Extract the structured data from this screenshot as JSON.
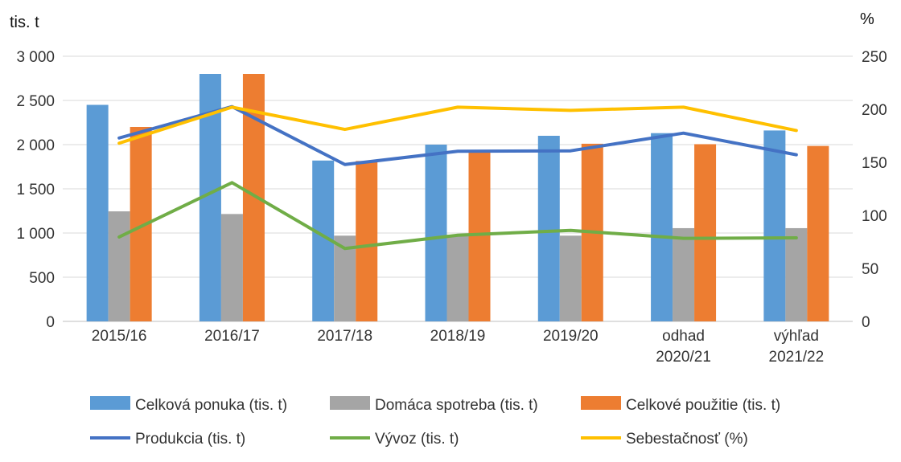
{
  "chart_data": {
    "type": "bar",
    "categories": [
      [
        "2015/16"
      ],
      [
        "2016/17"
      ],
      [
        "2017/18"
      ],
      [
        "2018/19"
      ],
      [
        "2019/20"
      ],
      [
        "odhad",
        "2020/21"
      ],
      [
        "výhľad",
        "2021/22"
      ]
    ],
    "left_axis": {
      "unit": "tis. t",
      "ylim": [
        0,
        3000
      ],
      "ticks": [
        0,
        500,
        1000,
        1500,
        2000,
        2500,
        3000
      ],
      "tick_labels": [
        "0",
        "500",
        "1 000",
        "1 500",
        "2 000",
        "2 500",
        "3 000"
      ]
    },
    "right_axis": {
      "unit": "%",
      "ylim": [
        0,
        250
      ],
      "ticks": [
        0,
        50,
        100,
        150,
        200,
        250
      ],
      "tick_labels": [
        "0",
        "50",
        "100",
        "150",
        "200",
        "250"
      ]
    },
    "bar_series": [
      {
        "name": "Celková ponuka (tis. t)",
        "color": "#5B9BD5",
        "values": [
          2450,
          2800,
          1820,
          2000,
          2100,
          2130,
          2160
        ]
      },
      {
        "name": "Domáca spotreba (tis. t)",
        "color": "#A5A5A5",
        "values": [
          1245,
          1215,
          970,
          980,
          970,
          1055,
          1055
        ]
      },
      {
        "name": "Celkové použitie (tis. t)",
        "color": "#ED7D31",
        "values": [
          2200,
          2800,
          1815,
          1915,
          2010,
          2005,
          1985
        ]
      }
    ],
    "line_series": [
      {
        "name": "Produkcia (tis. t)",
        "color": "#4472C4",
        "axis": "left",
        "values": [
          2075,
          2430,
          1775,
          1925,
          1930,
          2130,
          1885
        ]
      },
      {
        "name": "Vývoz (tis. t)",
        "color": "#70AD47",
        "axis": "left",
        "values": [
          955,
          1570,
          825,
          975,
          1030,
          940,
          945
        ]
      },
      {
        "name": "Sebestačnosť (%)",
        "color": "#FFC000",
        "axis": "right",
        "values": [
          168,
          202,
          181,
          202,
          199,
          202,
          180
        ]
      }
    ],
    "legend_position": "bottom",
    "grid": true
  }
}
